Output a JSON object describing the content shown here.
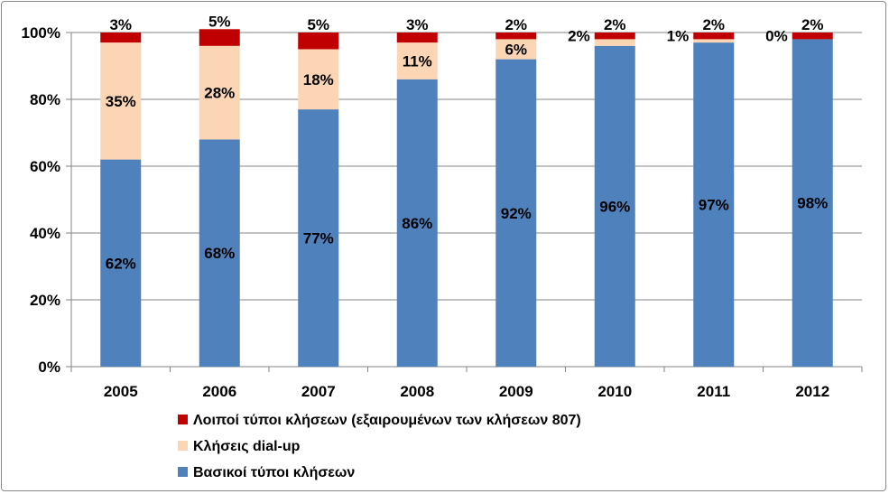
{
  "chart_data": {
    "type": "bar",
    "stacked": true,
    "percent": true,
    "title": "",
    "xlabel": "",
    "ylabel": "",
    "ylim": [
      0,
      100
    ],
    "y_ticks": [
      "0%",
      "20%",
      "40%",
      "60%",
      "80%",
      "100%"
    ],
    "y_tick_values": [
      0,
      20,
      40,
      60,
      80,
      100
    ],
    "categories": [
      "2005",
      "2006",
      "2007",
      "2008",
      "2009",
      "2010",
      "2011",
      "2012"
    ],
    "series": [
      {
        "name": "Βασικοί τύποι κλήσεων",
        "color": "#4f81bd",
        "values": [
          62,
          68,
          77,
          86,
          92,
          96,
          97,
          98
        ],
        "labels": [
          "62%",
          "68%",
          "77%",
          "86%",
          "92%",
          "96%",
          "97%",
          "98%"
        ]
      },
      {
        "name": "Κλήσεις dial-up",
        "color": "#fcd5b5",
        "values": [
          35,
          28,
          18,
          11,
          6,
          2,
          1,
          0
        ],
        "labels": [
          "35%",
          "28%",
          "18%",
          "11%",
          "6%",
          "2%",
          "1%",
          "0%"
        ]
      },
      {
        "name": "Λοιποί τύποι κλήσεων (εξαιρουμένων των κλήσεων 807)",
        "color": "#c00000",
        "values": [
          3,
          5,
          5,
          3,
          2,
          2,
          2,
          2
        ],
        "labels": [
          "3%",
          "5%",
          "5%",
          "3%",
          "2%",
          "2%",
          "2%",
          "2%"
        ]
      }
    ],
    "legend_order": [
      2,
      1,
      0
    ],
    "legend_position": "bottom-center",
    "grid": true
  }
}
